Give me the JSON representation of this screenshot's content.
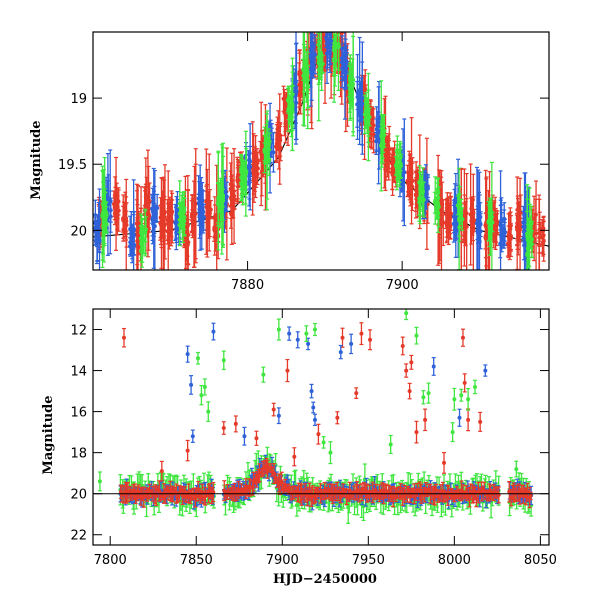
{
  "chart_data": [
    {
      "type": "scatter",
      "panel": "top",
      "xlabel": "",
      "ylabel": "Magnitude",
      "xlim": [
        7860,
        7919
      ],
      "ylim": [
        20.3,
        18.5
      ],
      "y_inverted": true,
      "x_ticks": [
        7880,
        7900
      ],
      "y_ticks": [
        19,
        19.5,
        20
      ],
      "x_tick_labels": [
        "7880",
        "7900"
      ],
      "y_tick_labels": [
        "19",
        "19.5",
        "20"
      ],
      "model_curve": {
        "x": [
          7860,
          7870,
          7878,
          7884,
          7887,
          7889,
          7890.5,
          7892,
          7894,
          7897,
          7900,
          7905,
          7910,
          7919
        ],
        "y": [
          20.05,
          20.0,
          19.85,
          19.45,
          19.05,
          18.72,
          18.62,
          18.68,
          18.95,
          19.35,
          19.62,
          19.85,
          20.0,
          20.12
        ]
      },
      "series": [
        {
          "color": "#e53a2a",
          "epochs": [
            [
              7861,
              19.95
            ],
            [
              7863,
              19.8
            ],
            [
              7864,
              19.92
            ],
            [
              7866,
              20.0
            ],
            [
              7867,
              19.85
            ],
            [
              7869,
              19.95
            ],
            [
              7870,
              19.9
            ],
            [
              7872,
              20.05
            ],
            [
              7873,
              19.9
            ],
            [
              7875,
              19.85
            ],
            [
              7876,
              19.95
            ],
            [
              7877,
              19.8
            ],
            [
              7878,
              19.75
            ],
            [
              7879,
              19.6
            ],
            [
              7881,
              19.55
            ],
            [
              7882,
              19.45
            ],
            [
              7884,
              19.3
            ],
            [
              7885,
              19.1
            ],
            [
              7887,
              18.9
            ],
            [
              7888,
              18.75
            ],
            [
              7889,
              18.65
            ],
            [
              7890,
              18.6
            ],
            [
              7891,
              18.62
            ],
            [
              7892,
              18.7
            ],
            [
              7893,
              18.85
            ],
            [
              7895,
              19.05
            ],
            [
              7896,
              19.2
            ],
            [
              7898,
              19.4
            ],
            [
              7899,
              19.5
            ],
            [
              7901,
              19.6
            ],
            [
              7902,
              19.7
            ],
            [
              7903,
              19.75
            ],
            [
              7905,
              19.85
            ],
            [
              7906,
              19.9
            ],
            [
              7908,
              19.95
            ],
            [
              7909,
              19.9
            ],
            [
              7911,
              20.0
            ],
            [
              7912,
              19.95
            ],
            [
              7914,
              20.05
            ],
            [
              7915,
              19.95
            ],
            [
              7917,
              20.0
            ],
            [
              7918,
              20.05
            ]
          ]
        },
        {
          "color": "#2f62d9",
          "epochs": [
            [
              7860.5,
              20.0
            ],
            [
              7862,
              19.8
            ],
            [
              7865,
              20.05
            ],
            [
              7868,
              19.9
            ],
            [
              7871,
              19.95
            ],
            [
              7874,
              19.85
            ],
            [
              7877,
              19.75
            ],
            [
              7880,
              19.55
            ],
            [
              7883,
              19.35
            ],
            [
              7886,
              18.95
            ],
            [
              7888.5,
              18.7
            ],
            [
              7890.5,
              18.6
            ],
            [
              7892.5,
              18.75
            ],
            [
              7894.5,
              19.0
            ],
            [
              7897,
              19.25
            ],
            [
              7900,
              19.55
            ],
            [
              7903,
              19.7
            ],
            [
              7907,
              19.85
            ],
            [
              7910,
              19.95
            ],
            [
              7913,
              20.0
            ],
            [
              7916,
              20.0
            ]
          ]
        },
        {
          "color": "#3fe63f",
          "epochs": [
            [
              7861.5,
              19.85
            ],
            [
              7866.5,
              20.05
            ],
            [
              7871.5,
              19.9
            ],
            [
              7876.5,
              19.8
            ],
            [
              7879.5,
              19.6
            ],
            [
              7882.5,
              19.4
            ],
            [
              7885.5,
              19.05
            ],
            [
              7887.5,
              18.8
            ],
            [
              7889.5,
              18.7
            ],
            [
              7891.5,
              18.65
            ],
            [
              7893.5,
              18.9
            ],
            [
              7895.5,
              19.1
            ],
            [
              7897.5,
              19.3
            ],
            [
              7899.5,
              19.5
            ],
            [
              7902.5,
              19.7
            ],
            [
              7904.5,
              19.8
            ],
            [
              7907.5,
              19.9
            ],
            [
              7911.5,
              19.95
            ],
            [
              7916.5,
              20.05
            ]
          ]
        }
      ]
    },
    {
      "type": "scatter",
      "panel": "bottom",
      "xlabel": "HJD−2450000",
      "ylabel": "Magnitude",
      "xlim": [
        7790,
        8055
      ],
      "ylim": [
        22.5,
        11
      ],
      "y_inverted": true,
      "x_ticks": [
        7800,
        7850,
        7900,
        7950,
        8000,
        8050
      ],
      "y_ticks": [
        12,
        14,
        16,
        18,
        20,
        22
      ],
      "x_tick_labels": [
        "7800",
        "7850",
        "7900",
        "7950",
        "8000",
        "8050"
      ],
      "y_tick_labels": [
        "12",
        "14",
        "16",
        "18",
        "20",
        "22"
      ],
      "baseline_mag": 20.0,
      "outliers": [
        {
          "color": "#e53a2a",
          "points": [
            [
              7808,
              12.4
            ],
            [
              7830,
              18.9
            ],
            [
              7845,
              17.9
            ],
            [
              7866,
              16.8
            ],
            [
              7873,
              16.6
            ],
            [
              7885,
              17.3
            ],
            [
              7895,
              15.9
            ],
            [
              7903,
              14.0
            ],
            [
              7907,
              18.2
            ],
            [
              7921,
              17.1
            ],
            [
              7932,
              16.3
            ],
            [
              7935,
              12.4
            ],
            [
              7943,
              15.1
            ],
            [
              7946,
              12.2
            ],
            [
              7951,
              12.5
            ],
            [
              7970,
              12.8
            ],
            [
              7972,
              14.0
            ],
            [
              7974,
              15.0
            ],
            [
              7975,
              13.6
            ],
            [
              7978,
              17.0
            ],
            [
              7983,
              16.4
            ],
            [
              7994,
              18.5
            ],
            [
              8005,
              12.4
            ],
            [
              8006,
              14.6
            ],
            [
              8008,
              16.4
            ],
            [
              8015,
              16.5
            ]
          ]
        },
        {
          "color": "#2f62d9",
          "points": [
            [
              7845,
              13.2
            ],
            [
              7847,
              14.7
            ],
            [
              7848,
              17.2
            ],
            [
              7860,
              12.1
            ],
            [
              7878,
              17.2
            ],
            [
              7898,
              16.2
            ],
            [
              7904,
              12.2
            ],
            [
              7909,
              12.5
            ],
            [
              7915,
              12.7
            ],
            [
              7917,
              15.0
            ],
            [
              7918,
              15.8
            ],
            [
              7919,
              16.4
            ],
            [
              7934,
              13.1
            ],
            [
              7940,
              12.7
            ],
            [
              7988,
              13.8
            ],
            [
              8003,
              16.3
            ],
            [
              8018,
              14.0
            ]
          ]
        },
        {
          "color": "#3fe63f",
          "points": [
            [
              7794,
              19.4
            ],
            [
              7851,
              13.4
            ],
            [
              7853,
              15.2
            ],
            [
              7855,
              14.8
            ],
            [
              7857,
              16.0
            ],
            [
              7866,
              13.5
            ],
            [
              7889,
              14.2
            ],
            [
              7898,
              12.0
            ],
            [
              7914,
              12.2
            ],
            [
              7919,
              12.0
            ],
            [
              7924,
              17.5
            ],
            [
              7928,
              18.0
            ],
            [
              7963,
              17.6
            ],
            [
              7972,
              11.2
            ],
            [
              7978,
              12.3
            ],
            [
              7982,
              15.3
            ],
            [
              7985,
              15.1
            ],
            [
              7999,
              17.0
            ],
            [
              8000,
              15.4
            ],
            [
              8004,
              15.2
            ],
            [
              8008,
              15.4
            ],
            [
              8012,
              14.8
            ],
            [
              8036,
              18.8
            ]
          ]
        }
      ]
    }
  ]
}
